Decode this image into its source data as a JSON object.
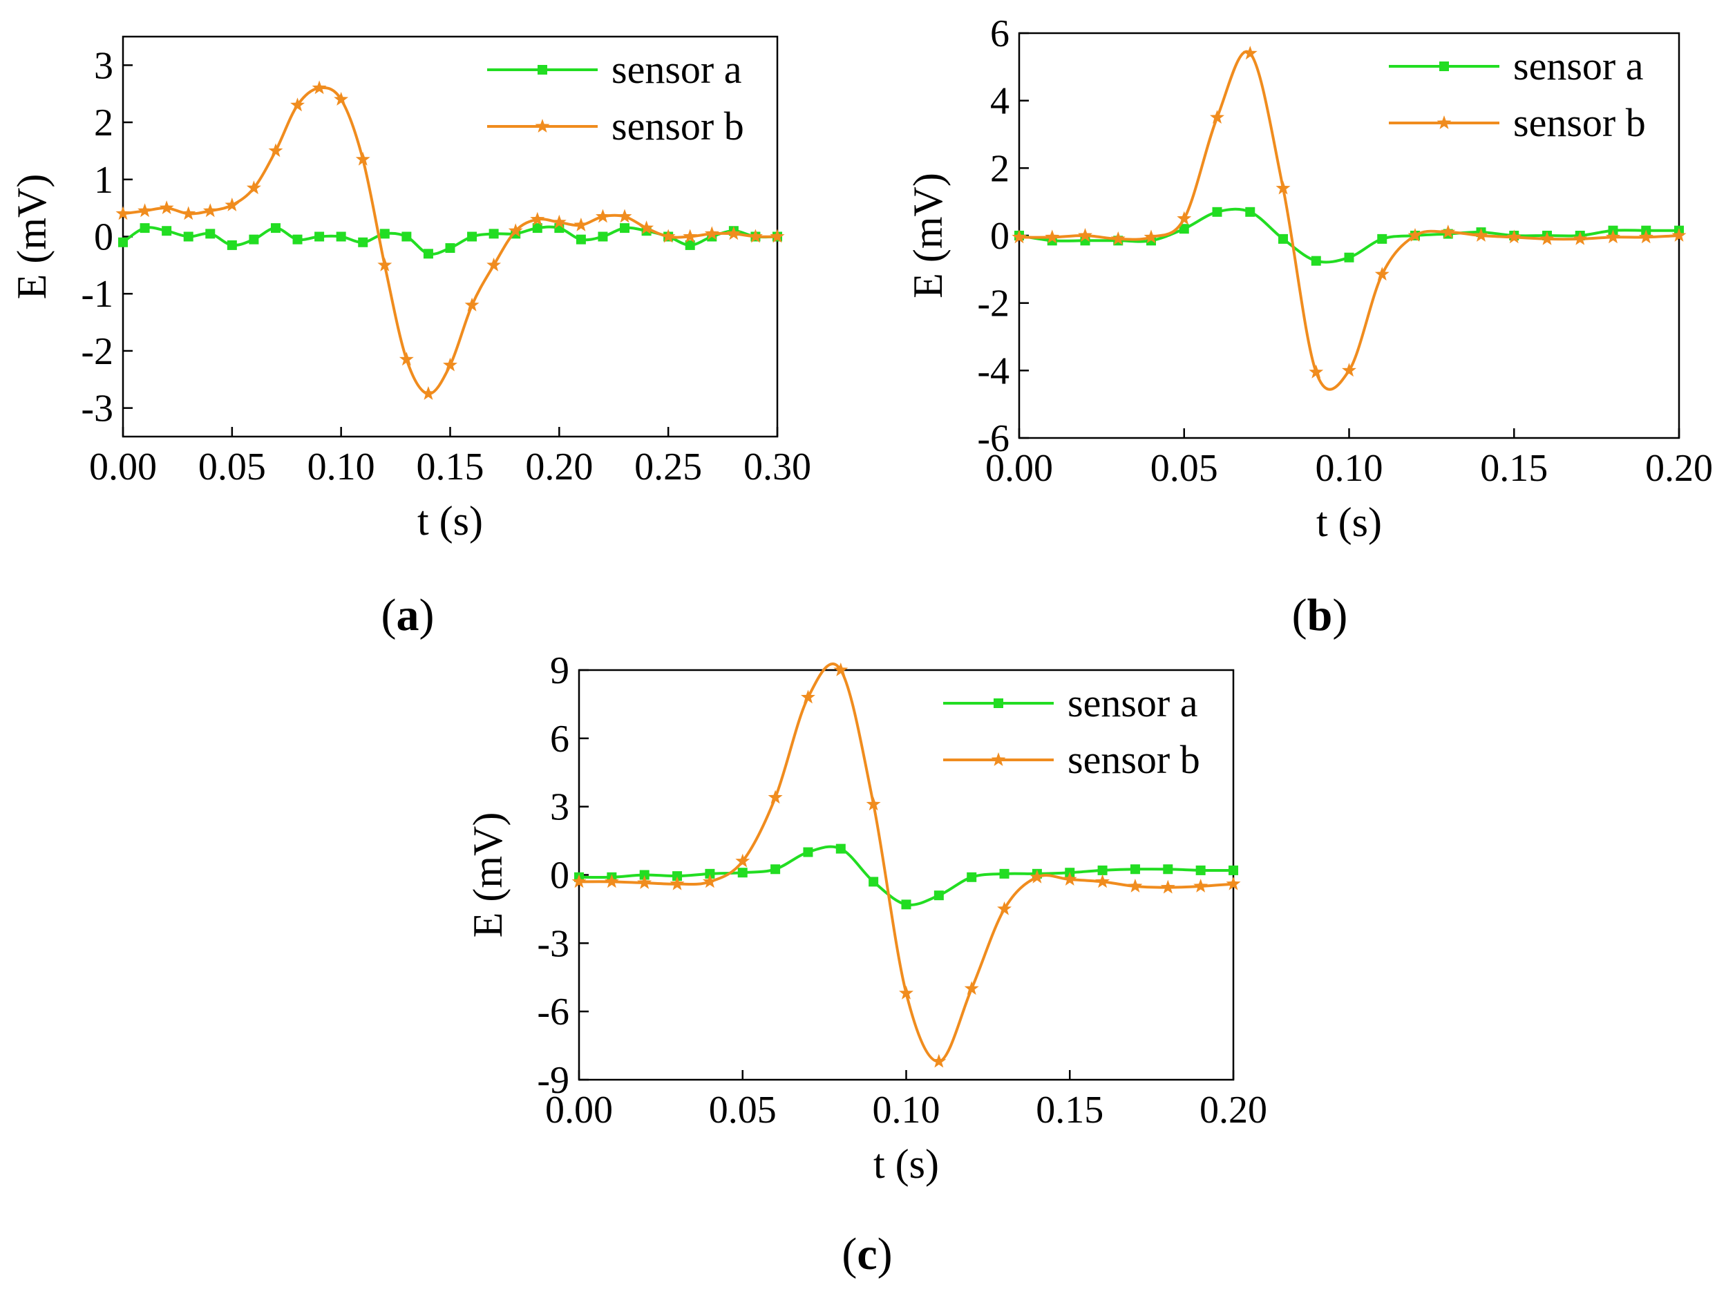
{
  "chart_data": [
    {
      "type": "line",
      "panel_label": "a",
      "xlabel": "t (s)",
      "ylabel": "E (mV)",
      "xlim": [
        0,
        0.3
      ],
      "ylim": [
        -3.5,
        3.5
      ],
      "xticks": [
        "0.00",
        "0.05",
        "0.10",
        "0.15",
        "0.20",
        "0.25",
        "0.30"
      ],
      "xtick_values": [
        0,
        0.05,
        0.1,
        0.15,
        0.2,
        0.25,
        0.3
      ],
      "yticks": [
        "-3",
        "-2",
        "-1",
        "0",
        "1",
        "2",
        "3"
      ],
      "ytick_values": [
        -3,
        -2,
        -1,
        0,
        1,
        2,
        3
      ],
      "legend_position": "top-right",
      "grid": false,
      "series": [
        {
          "name": "sensor a",
          "color": "#22dd22",
          "marker": "square",
          "x": [
            0.0,
            0.01,
            0.02,
            0.03,
            0.04,
            0.05,
            0.06,
            0.07,
            0.08,
            0.09,
            0.1,
            0.11,
            0.12,
            0.13,
            0.14,
            0.15,
            0.16,
            0.17,
            0.18,
            0.19,
            0.2,
            0.21,
            0.22,
            0.23,
            0.24,
            0.25,
            0.26,
            0.27,
            0.28,
            0.29,
            0.3
          ],
          "y": [
            -0.1,
            0.15,
            0.1,
            0.0,
            0.05,
            -0.15,
            -0.05,
            0.15,
            -0.05,
            0.0,
            0.0,
            -0.1,
            0.05,
            0.0,
            -0.3,
            -0.2,
            0.0,
            0.05,
            0.05,
            0.15,
            0.15,
            -0.05,
            0.0,
            0.15,
            0.1,
            0.0,
            -0.15,
            0.0,
            0.1,
            0.0,
            0.0
          ]
        },
        {
          "name": "sensor b",
          "color": "#f08c1e",
          "marker": "star",
          "x": [
            0.0,
            0.01,
            0.02,
            0.03,
            0.04,
            0.05,
            0.06,
            0.07,
            0.08,
            0.09,
            0.1,
            0.11,
            0.12,
            0.13,
            0.14,
            0.15,
            0.16,
            0.17,
            0.18,
            0.19,
            0.2,
            0.21,
            0.22,
            0.23,
            0.24,
            0.25,
            0.26,
            0.27,
            0.28,
            0.29,
            0.3
          ],
          "y": [
            0.4,
            0.45,
            0.5,
            0.4,
            0.45,
            0.55,
            0.85,
            1.5,
            2.3,
            2.6,
            2.4,
            1.35,
            -0.5,
            -2.15,
            -2.75,
            -2.25,
            -1.2,
            -0.5,
            0.1,
            0.3,
            0.25,
            0.2,
            0.35,
            0.35,
            0.15,
            0.0,
            0.0,
            0.05,
            0.05,
            0.0,
            0.0
          ]
        }
      ]
    },
    {
      "type": "line",
      "panel_label": "b",
      "xlabel": "t (s)",
      "ylabel": "E (mV)",
      "xlim": [
        0,
        0.2
      ],
      "ylim": [
        -6,
        6
      ],
      "xticks": [
        "0.00",
        "0.05",
        "0.10",
        "0.15",
        "0.20"
      ],
      "xtick_values": [
        0,
        0.05,
        0.1,
        0.15,
        0.2
      ],
      "yticks": [
        "-6",
        "-4",
        "-2",
        "0",
        "2",
        "4",
        "6"
      ],
      "ytick_values": [
        -6,
        -4,
        -2,
        0,
        2,
        4,
        6
      ],
      "legend_position": "top-right",
      "grid": false,
      "series": [
        {
          "name": "sensor a",
          "color": "#22dd22",
          "marker": "square",
          "x": [
            0.0,
            0.01,
            0.02,
            0.03,
            0.04,
            0.05,
            0.06,
            0.07,
            0.08,
            0.09,
            0.1,
            0.11,
            0.12,
            0.13,
            0.14,
            0.15,
            0.16,
            0.17,
            0.18,
            0.19,
            0.2
          ],
          "y": [
            0.0,
            -0.15,
            -0.15,
            -0.15,
            -0.15,
            0.2,
            0.7,
            0.7,
            -0.1,
            -0.75,
            -0.65,
            -0.1,
            0.0,
            0.05,
            0.1,
            0.0,
            0.0,
            0.0,
            0.15,
            0.15,
            0.15
          ]
        },
        {
          "name": "sensor b",
          "color": "#f08c1e",
          "marker": "star",
          "x": [
            0.0,
            0.01,
            0.02,
            0.03,
            0.04,
            0.05,
            0.06,
            0.07,
            0.08,
            0.09,
            0.1,
            0.11,
            0.12,
            0.13,
            0.14,
            0.15,
            0.16,
            0.17,
            0.18,
            0.19,
            0.2
          ],
          "y": [
            -0.05,
            -0.05,
            0.0,
            -0.1,
            -0.05,
            0.5,
            3.5,
            5.4,
            1.4,
            -4.05,
            -4.0,
            -1.15,
            0.0,
            0.1,
            0.0,
            -0.05,
            -0.1,
            -0.1,
            -0.05,
            -0.05,
            0.0
          ]
        }
      ]
    },
    {
      "type": "line",
      "panel_label": "c",
      "xlabel": "t (s)",
      "ylabel": "E (mV)",
      "xlim": [
        0,
        0.2
      ],
      "ylim": [
        -9,
        9
      ],
      "xticks": [
        "0.00",
        "0.05",
        "0.10",
        "0.15",
        "0.20"
      ],
      "xtick_values": [
        0,
        0.05,
        0.1,
        0.15,
        0.2
      ],
      "yticks": [
        "-9",
        "-6",
        "-3",
        "0",
        "3",
        "6",
        "9"
      ],
      "ytick_values": [
        -9,
        -6,
        -3,
        0,
        3,
        6,
        9
      ],
      "legend_position": "top-right",
      "grid": false,
      "series": [
        {
          "name": "sensor a",
          "color": "#22dd22",
          "marker": "square",
          "x": [
            0.0,
            0.01,
            0.02,
            0.03,
            0.04,
            0.05,
            0.06,
            0.07,
            0.08,
            0.09,
            0.1,
            0.11,
            0.12,
            0.13,
            0.14,
            0.15,
            0.16,
            0.17,
            0.18,
            0.19,
            0.2
          ],
          "y": [
            -0.1,
            -0.1,
            0.0,
            -0.05,
            0.05,
            0.1,
            0.25,
            1.0,
            1.15,
            -0.3,
            -1.3,
            -0.9,
            -0.1,
            0.05,
            0.05,
            0.1,
            0.2,
            0.25,
            0.25,
            0.2,
            0.2
          ]
        },
        {
          "name": "sensor b",
          "color": "#f08c1e",
          "marker": "star",
          "x": [
            0.0,
            0.01,
            0.02,
            0.03,
            0.04,
            0.05,
            0.06,
            0.07,
            0.08,
            0.09,
            0.1,
            0.11,
            0.12,
            0.13,
            0.14,
            0.15,
            0.16,
            0.17,
            0.18,
            0.19,
            0.2
          ],
          "y": [
            -0.3,
            -0.3,
            -0.35,
            -0.4,
            -0.3,
            0.6,
            3.4,
            7.8,
            9.0,
            3.1,
            -5.2,
            -8.2,
            -5.0,
            -1.5,
            -0.1,
            -0.2,
            -0.3,
            -0.5,
            -0.55,
            -0.5,
            -0.4
          ]
        }
      ]
    }
  ]
}
